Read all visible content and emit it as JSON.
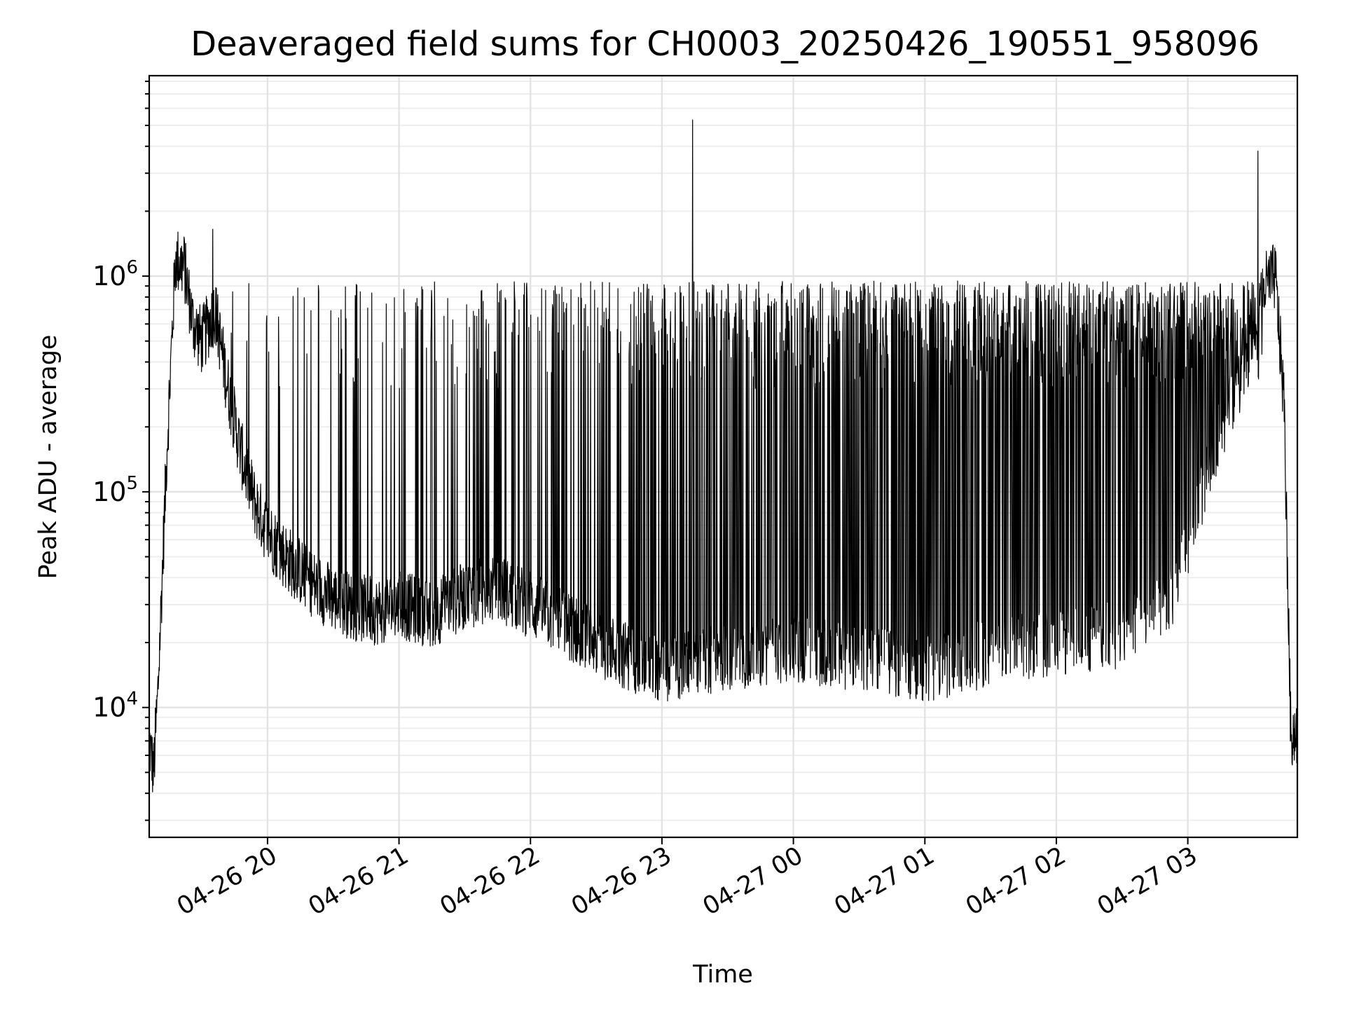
{
  "chart_data": {
    "type": "line",
    "title": "Deaveraged field sums for CH0003_20250426_190551_958096",
    "xlabel": "Time",
    "ylabel": "Peak ADU - average",
    "yscale": "log",
    "ylim": [
      2500,
      8500000
    ],
    "xlim": [
      "2025-04-26 19:06",
      "2025-04-27 03:50"
    ],
    "grid": true,
    "legend": "none",
    "line_color": "#000000",
    "x_ticks": [
      {
        "t": "2025-04-26 20:00",
        "label": "04-26 20"
      },
      {
        "t": "2025-04-26 21:00",
        "label": "04-26 21"
      },
      {
        "t": "2025-04-26 22:00",
        "label": "04-26 22"
      },
      {
        "t": "2025-04-26 23:00",
        "label": "04-26 23"
      },
      {
        "t": "2025-04-27 00:00",
        "label": "04-27 00"
      },
      {
        "t": "2025-04-27 01:00",
        "label": "04-27 01"
      },
      {
        "t": "2025-04-27 02:00",
        "label": "04-27 02"
      },
      {
        "t": "2025-04-27 03:00",
        "label": "04-27 03"
      }
    ],
    "y_ticks": [
      {
        "value": 10000,
        "base": "10",
        "exp": "4"
      },
      {
        "value": 100000,
        "base": "10",
        "exp": "5"
      },
      {
        "value": 1000000,
        "base": "10",
        "exp": "6"
      }
    ],
    "series": [
      {
        "baseline": {
          "x": [
            "2025-04-26 19:06",
            "2025-04-26 19:08",
            "2025-04-26 19:10",
            "2025-04-26 19:14",
            "2025-04-26 19:18",
            "2025-04-26 19:22",
            "2025-04-26 19:26",
            "2025-04-26 19:30",
            "2025-04-26 19:36",
            "2025-04-26 19:42",
            "2025-04-26 19:48",
            "2025-04-26 19:54",
            "2025-04-26 20:00",
            "2025-04-26 20:05",
            "2025-04-26 20:10",
            "2025-04-26 20:20",
            "2025-04-26 20:30",
            "2025-04-26 20:40",
            "2025-04-26 20:50",
            "2025-04-26 21:00",
            "2025-04-26 21:15",
            "2025-04-26 21:30",
            "2025-04-26 21:45",
            "2025-04-26 22:00",
            "2025-04-26 22:20",
            "2025-04-26 22:40",
            "2025-04-26 23:00",
            "2025-04-26 23:30",
            "2025-04-27 00:00",
            "2025-04-27 00:30",
            "2025-04-27 01:00",
            "2025-04-27 01:30",
            "2025-04-27 02:00",
            "2025-04-27 02:30",
            "2025-04-27 02:55",
            "2025-04-27 03:05",
            "2025-04-27 03:15",
            "2025-04-27 03:25",
            "2025-04-27 03:35",
            "2025-04-27 03:40",
            "2025-04-27 03:44",
            "2025-04-27 03:47",
            "2025-04-27 03:50"
          ],
          "y": [
            7000,
            5000,
            12000,
            150000,
            1200000,
            1100000,
            600000,
            500000,
            700000,
            300000,
            150000,
            90000,
            65000,
            55000,
            48000,
            38000,
            32000,
            29000,
            28000,
            30000,
            27000,
            33000,
            36000,
            30000,
            23000,
            18000,
            15000,
            17000,
            19000,
            17000,
            15000,
            18000,
            20000,
            22000,
            35000,
            90000,
            200000,
            350000,
            900000,
            1000000,
            250000,
            7500,
            7800
          ]
        },
        "spikes": [
          {
            "t": "2025-04-26 23:14",
            "value": 5300000
          },
          {
            "t": "2025-04-27 03:32",
            "value": 3800000
          },
          {
            "t": "2025-04-26 19:35",
            "value": 1650000
          },
          {
            "t": "2025-04-26 19:22",
            "value": 1500000
          }
        ]
      }
    ]
  }
}
